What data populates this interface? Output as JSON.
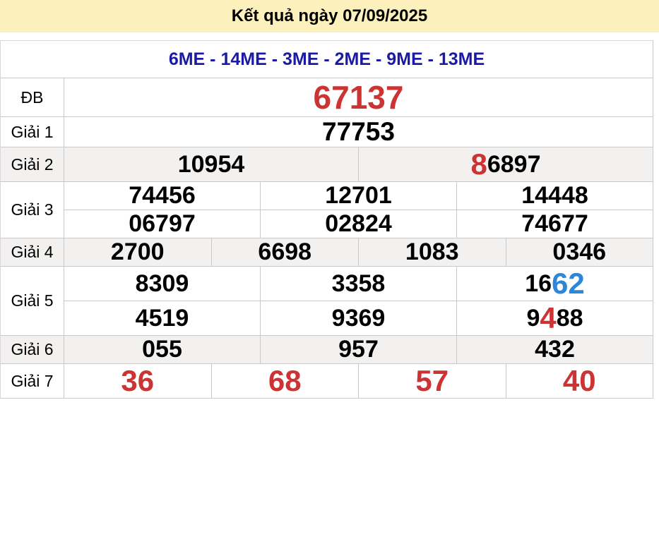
{
  "banner": {
    "title": "Kết quả ngày 07/09/2025"
  },
  "header": {
    "stations": "6ME - 14ME - 3ME - 2ME - 9ME - 13ME"
  },
  "colors": {
    "banner_bg": "#fcf1bd",
    "navy": "#1a1aa6",
    "red": "#cc3333",
    "blue": "#2e86d8",
    "stripe": "#f2f1ef",
    "border": "#c9c9c9"
  },
  "prizes": [
    {
      "id": "db",
      "label": "ĐB",
      "striped": false,
      "rows": [
        [
          [
            {
              "t": "67137",
              "c": "red"
            }
          ]
        ]
      ]
    },
    {
      "id": "g1",
      "label": "Giải 1",
      "striped": false,
      "rows": [
        [
          [
            {
              "t": "77753"
            }
          ]
        ]
      ]
    },
    {
      "id": "g2",
      "label": "Giải 2",
      "striped": true,
      "rows": [
        [
          [
            {
              "t": "10954"
            }
          ],
          [
            {
              "t": "8",
              "c": "red",
              "big": true
            },
            {
              "t": "6897"
            }
          ]
        ]
      ]
    },
    {
      "id": "g3",
      "label": "Giải 3",
      "striped": false,
      "rows": [
        [
          [
            {
              "t": "74456"
            }
          ],
          [
            {
              "t": "12701"
            }
          ],
          [
            {
              "t": "14448"
            }
          ]
        ],
        [
          [
            {
              "t": "06797"
            }
          ],
          [
            {
              "t": "02824"
            }
          ],
          [
            {
              "t": "74677"
            }
          ]
        ]
      ]
    },
    {
      "id": "g4",
      "label": "Giải 4",
      "striped": true,
      "rows": [
        [
          [
            {
              "t": "2700"
            }
          ],
          [
            {
              "t": "6698"
            }
          ],
          [
            {
              "t": "1083"
            }
          ],
          [
            {
              "t": "0346"
            }
          ]
        ]
      ]
    },
    {
      "id": "g5",
      "label": "Giải 5",
      "striped": false,
      "rows": [
        [
          [
            {
              "t": "8309"
            }
          ],
          [
            {
              "t": "3358"
            }
          ],
          [
            {
              "t": "16"
            },
            {
              "t": "62",
              "c": "blue",
              "big": true
            }
          ]
        ],
        [
          [
            {
              "t": "4519"
            }
          ],
          [
            {
              "t": "9369"
            }
          ],
          [
            {
              "t": "9"
            },
            {
              "t": "4",
              "c": "red",
              "big": true
            },
            {
              "t": "88"
            }
          ]
        ]
      ]
    },
    {
      "id": "g6",
      "label": "Giải 6",
      "striped": true,
      "rows": [
        [
          [
            {
              "t": "055"
            }
          ],
          [
            {
              "t": "957"
            }
          ],
          [
            {
              "t": "432"
            }
          ]
        ]
      ]
    },
    {
      "id": "g7",
      "label": "Giải 7",
      "striped": false,
      "rows": [
        [
          [
            {
              "t": "36",
              "c": "red"
            }
          ],
          [
            {
              "t": "68",
              "c": "red"
            }
          ],
          [
            {
              "t": "57",
              "c": "red"
            }
          ],
          [
            {
              "t": "40",
              "c": "red"
            }
          ]
        ]
      ]
    }
  ]
}
